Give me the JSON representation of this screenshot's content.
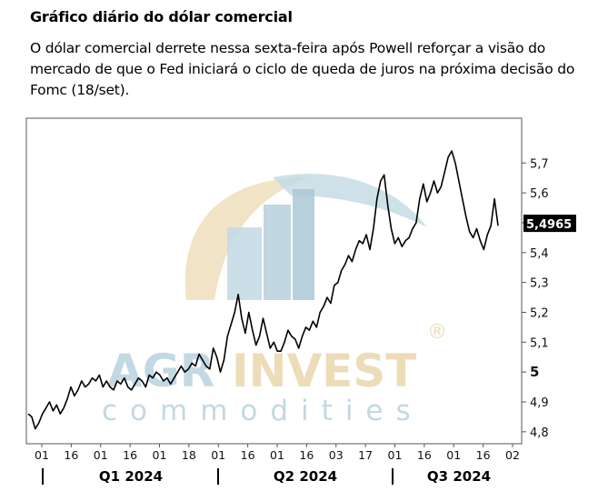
{
  "header": {
    "title": "Gráfico diário do dólar comercial",
    "subtitle": "O dólar comercial derrete nessa sexta-feira após Powell reforçar a visão do mercado de que o Fed iniciará o ciclo de queda de juros na próxima decisão do Fomc (18/set)."
  },
  "watermark": {
    "brand_part1": "AGR",
    "brand_part2": "INVEST",
    "registered": "®",
    "tagline": "commodities"
  },
  "colors": {
    "line": "#000000",
    "frame": "#555555",
    "wm_blue": "#c2d9e4",
    "wm_tan": "#ecdcb8"
  },
  "chart_data": {
    "type": "line",
    "series_color": "#000000",
    "last_value_label": "5,4965",
    "last_value": 5.4965,
    "ylim": [
      4.76,
      5.85
    ],
    "y_ticks": [
      4.8,
      4.9,
      5.0,
      5.1,
      5.2,
      5.3,
      5.4,
      5.5,
      5.6,
      5.7
    ],
    "y_tick_labels": [
      "4,8",
      "4,9",
      "5",
      "5,1",
      "5,2",
      "5,3",
      "5,4",
      "5,5",
      "5,6",
      "5,7"
    ],
    "x_tick_labels": [
      "01",
      "16",
      "01",
      "16",
      "01",
      "18",
      "01",
      "16",
      "01",
      "16",
      "03",
      "17",
      "01",
      "16",
      "01",
      "16",
      "02"
    ],
    "quarters": [
      "Q1 2024",
      "Q2 2024",
      "Q3 2024"
    ],
    "grid": false,
    "values": [
      4.86,
      4.85,
      4.81,
      4.83,
      4.86,
      4.88,
      4.9,
      4.87,
      4.89,
      4.86,
      4.88,
      4.91,
      4.95,
      4.92,
      4.94,
      4.97,
      4.95,
      4.96,
      4.98,
      4.97,
      4.99,
      4.95,
      4.97,
      4.95,
      4.94,
      4.97,
      4.96,
      4.98,
      4.95,
      4.94,
      4.96,
      4.98,
      4.97,
      4.95,
      4.99,
      4.98,
      5.0,
      4.99,
      4.97,
      4.98,
      4.96,
      4.98,
      5.0,
      5.02,
      5.0,
      5.01,
      5.03,
      5.02,
      5.06,
      5.04,
      5.02,
      5.01,
      5.08,
      5.05,
      5.0,
      5.04,
      5.12,
      5.16,
      5.2,
      5.26,
      5.18,
      5.13,
      5.2,
      5.14,
      5.09,
      5.12,
      5.18,
      5.13,
      5.08,
      5.1,
      5.07,
      5.07,
      5.1,
      5.14,
      5.12,
      5.11,
      5.08,
      5.12,
      5.15,
      5.14,
      5.17,
      5.15,
      5.2,
      5.22,
      5.25,
      5.23,
      5.29,
      5.3,
      5.34,
      5.36,
      5.39,
      5.37,
      5.41,
      5.44,
      5.43,
      5.46,
      5.41,
      5.48,
      5.58,
      5.64,
      5.66,
      5.56,
      5.48,
      5.43,
      5.45,
      5.42,
      5.44,
      5.45,
      5.48,
      5.5,
      5.58,
      5.63,
      5.57,
      5.6,
      5.64,
      5.6,
      5.62,
      5.67,
      5.72,
      5.74,
      5.7,
      5.64,
      5.58,
      5.52,
      5.47,
      5.45,
      5.48,
      5.44,
      5.41,
      5.46,
      5.49,
      5.58,
      5.49
    ]
  }
}
